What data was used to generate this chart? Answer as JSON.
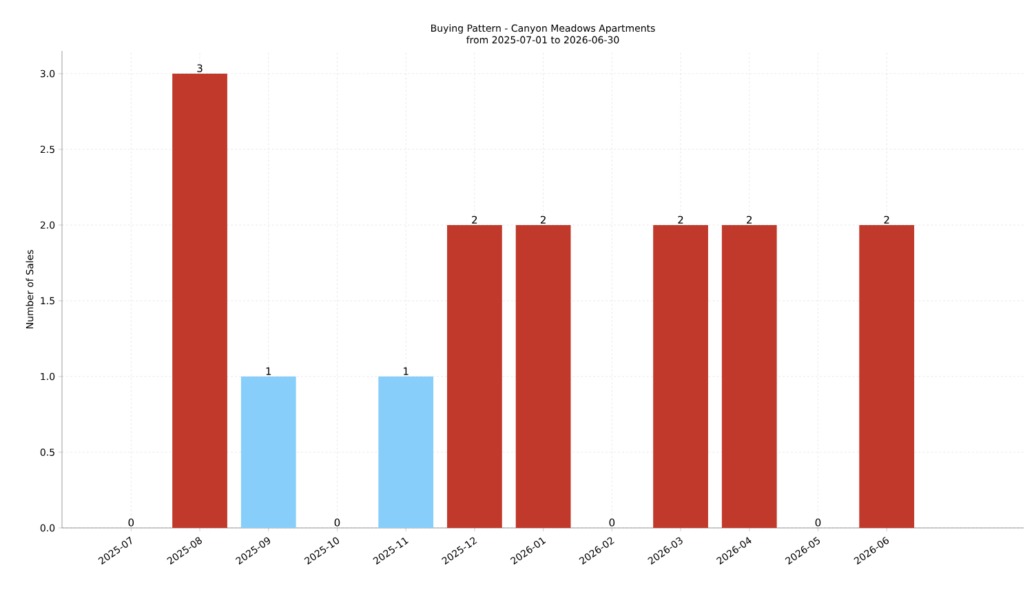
{
  "chart_data": {
    "type": "bar",
    "title": "Buying Pattern - Canyon Meadows Apartments",
    "subtitle": "from 2025-07-01 to 2026-06-30",
    "ylabel": "Number of Sales",
    "categories": [
      "2025-07",
      "2025-08",
      "2025-09",
      "2025-10",
      "2025-11",
      "2025-12",
      "2026-01",
      "2026-02",
      "2026-03",
      "2026-04",
      "2026-05",
      "2026-06"
    ],
    "values": [
      0,
      3,
      1,
      0,
      1,
      2,
      2,
      0,
      2,
      2,
      0,
      2
    ],
    "colors": [
      "#87cefa",
      "#c0392b",
      "#87cefa",
      "#87cefa",
      "#87cefa",
      "#c0392b",
      "#c0392b",
      "#87cefa",
      "#c0392b",
      "#c0392b",
      "#87cefa",
      "#c0392b"
    ],
    "ylim": [
      0,
      3.15
    ],
    "yticks": [
      {
        "value": 0,
        "label": "0.0"
      },
      {
        "value": 0.5,
        "label": "0.5"
      },
      {
        "value": 1,
        "label": "1.0"
      },
      {
        "value": 1.5,
        "label": "1.5"
      },
      {
        "value": 2,
        "label": "2.0"
      },
      {
        "value": 2.5,
        "label": "2.5"
      },
      {
        "value": 3,
        "label": "3.0"
      }
    ],
    "grid": true,
    "data_labels": true
  }
}
